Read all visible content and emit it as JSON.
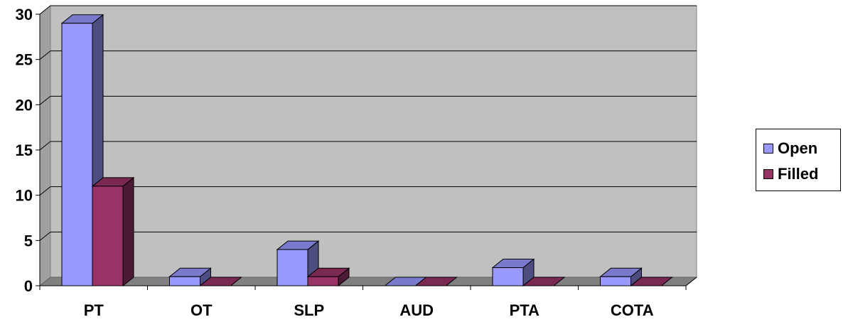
{
  "chart_data": {
    "type": "bar",
    "categories": [
      "PT",
      "OT",
      "SLP",
      "AUD",
      "PTA",
      "COTA"
    ],
    "series": [
      {
        "name": "Open",
        "values": [
          29,
          1,
          4,
          0,
          2,
          1
        ]
      },
      {
        "name": "Filled",
        "values": [
          11,
          0,
          1,
          0,
          0,
          0
        ]
      }
    ],
    "ylim": [
      0,
      30
    ],
    "yticks": [
      0,
      5,
      10,
      15,
      20,
      25,
      30
    ],
    "grid": true,
    "legend_position": "right",
    "colors": {
      "open_front": "#9999ff",
      "open_side": "#4d4d80",
      "open_top": "#7a7acc",
      "filled_front": "#993366",
      "filled_side": "#4d1a33",
      "filled_top": "#7a2952",
      "plot_back": "#c0c0c0",
      "plot_floor": "#808080"
    }
  }
}
